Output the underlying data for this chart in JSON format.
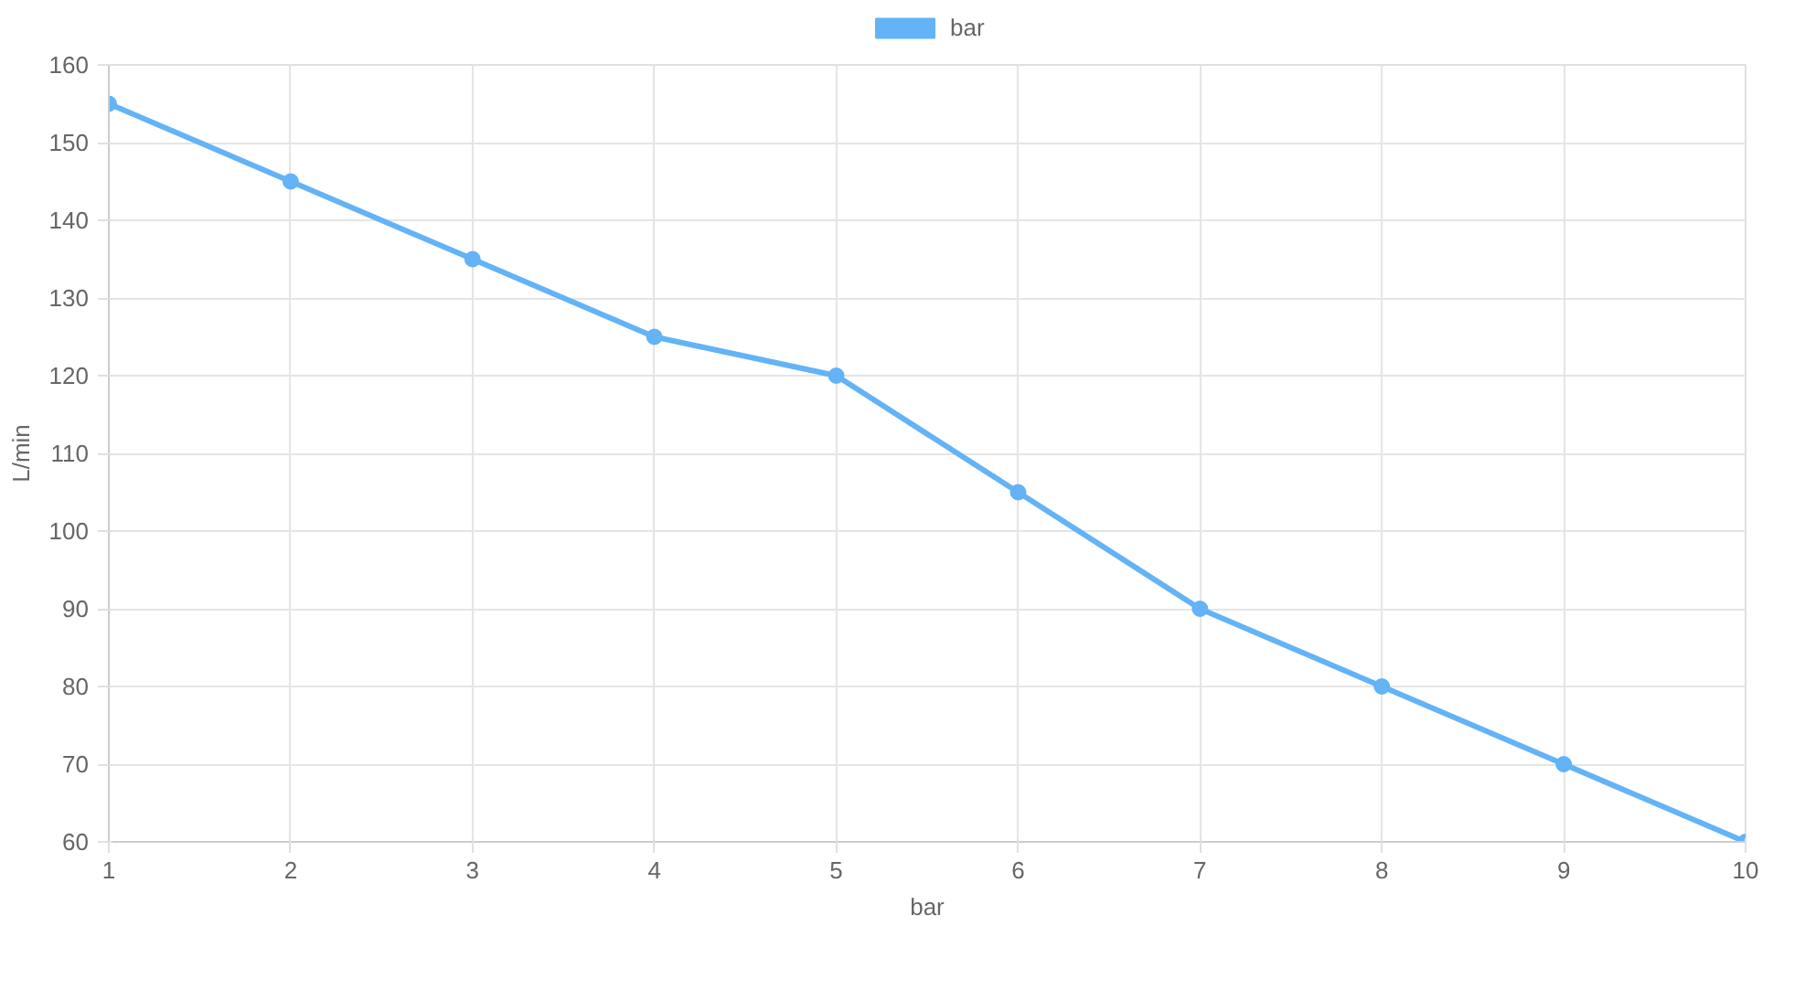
{
  "chart_data": {
    "type": "line",
    "xlabel": "bar",
    "ylabel": "L/min",
    "x": [
      1,
      2,
      3,
      4,
      5,
      6,
      7,
      8,
      9,
      10
    ],
    "series": [
      {
        "name": "bar",
        "color": "#63b3f6",
        "values": [
          155,
          145,
          135,
          125,
          120,
          105,
          90,
          80,
          70,
          60
        ]
      }
    ],
    "xlim": [
      1,
      10
    ],
    "xticks": [
      1,
      2,
      3,
      4,
      5,
      6,
      7,
      8,
      9,
      10
    ],
    "ylim": [
      60,
      160
    ],
    "yticks": [
      60,
      70,
      80,
      90,
      100,
      110,
      120,
      130,
      140,
      150,
      160
    ],
    "grid": true,
    "legend": "top",
    "marker": "circle",
    "line_style": "solid"
  }
}
